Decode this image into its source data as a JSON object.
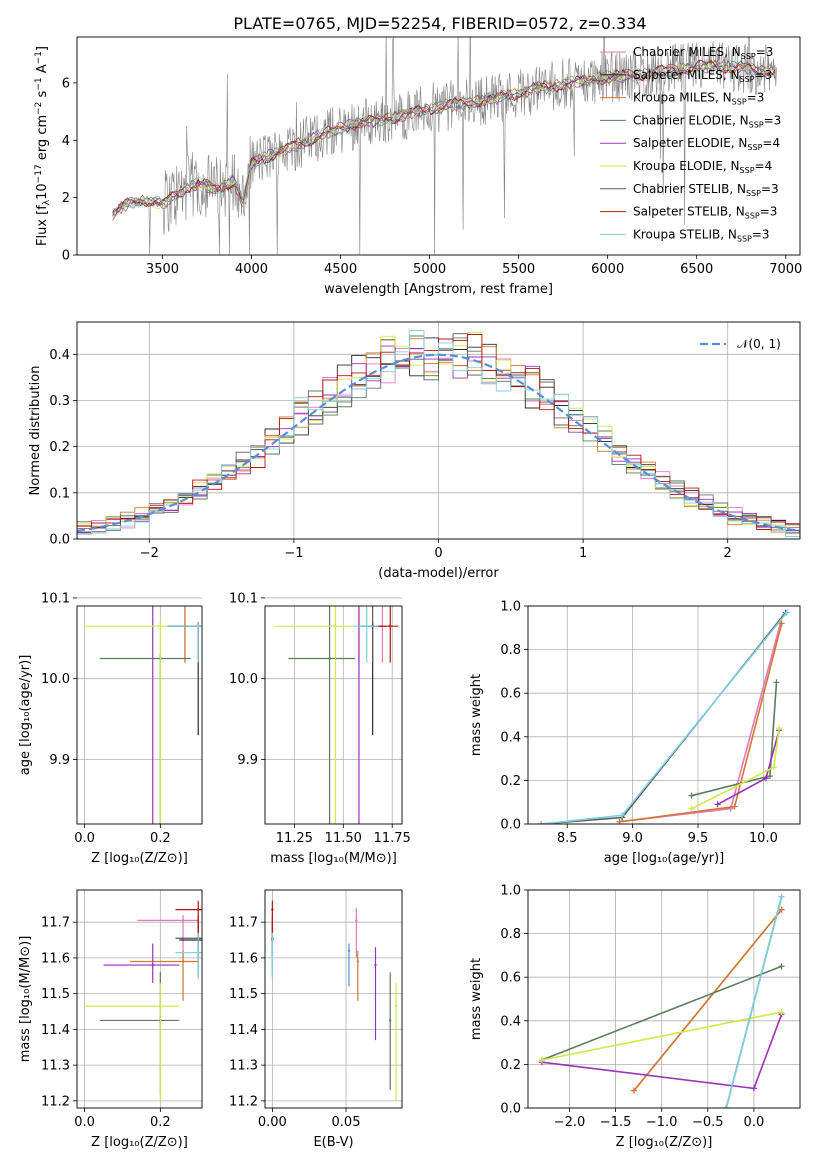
{
  "figure": {
    "title": "PLATE=0765, MJD=52254, FIBERID=0572, z=0.334"
  },
  "colors": {
    "Chabrier MILES": "#e377c2",
    "Salpeter MILES": "#2a2a2a",
    "Kroupa MILES": "#d2772f",
    "Chabrier ELODIE": "#5a7d5a",
    "Salpeter ELODIE": "#9a32b8",
    "Kroupa ELODIE": "#cfe84a",
    "Chabrier STELIB": "#5a5a5a",
    "Salpeter STELIB": "#b81414",
    "Kroupa STELIB": "#7fd0e0",
    "observed": "#808080",
    "normal": "#5b8ed6",
    "extra_blue": "#5b8ed6"
  },
  "legend": {
    "labels": [
      "Chabrier MILES, N",
      "Salpeter MILES, N",
      "Kroupa MILES, N",
      "Chabrier ELODIE, N",
      "Salpeter ELODIE, N",
      "Kroupa ELODIE, N",
      "Chabrier STELIB, N",
      "Salpeter STELIB, N",
      "Kroupa STELIB, N"
    ],
    "subscript": "SSP",
    "nssp": [
      "=3",
      "=3",
      "=3",
      "=3",
      "=4",
      "=4",
      "=3",
      "=3",
      "=3"
    ],
    "normal_label": "𝒩(0, 1)"
  },
  "chart_data": [
    {
      "id": "spectrum",
      "type": "line",
      "xlabel": "wavelength [Angstrom, rest frame]",
      "ylabel": "Flux [f",
      "ylabel_parts": [
        "λ",
        "10",
        "−17",
        " erg cm",
        "−2",
        " s",
        "−1",
        " A",
        "−1",
        "]"
      ],
      "xlim": [
        3020,
        7080
      ],
      "ylim": [
        0,
        7.6
      ],
      "xticks": [
        3500,
        4000,
        4500,
        5000,
        5500,
        6000,
        6500,
        7000
      ],
      "yticks": [
        0,
        2,
        4,
        6
      ],
      "continuum": [
        [
          3220,
          1.4
        ],
        [
          3300,
          1.8
        ],
        [
          3400,
          1.9
        ],
        [
          3500,
          1.8
        ],
        [
          3600,
          2.2
        ],
        [
          3700,
          2.5
        ],
        [
          3800,
          2.3
        ],
        [
          3900,
          2.6
        ],
        [
          3950,
          1.8
        ],
        [
          4000,
          3.2
        ],
        [
          4200,
          3.7
        ],
        [
          4400,
          4.2
        ],
        [
          4600,
          4.6
        ],
        [
          4800,
          4.8
        ],
        [
          5000,
          5.1
        ],
        [
          5200,
          5.3
        ],
        [
          5400,
          5.5
        ],
        [
          5600,
          5.8
        ],
        [
          5800,
          6.0
        ],
        [
          6000,
          6.2
        ],
        [
          6200,
          6.3
        ],
        [
          6400,
          6.5
        ],
        [
          6600,
          6.6
        ],
        [
          6800,
          6.5
        ],
        [
          6950,
          6.4
        ]
      ]
    },
    {
      "id": "residual_histogram",
      "type": "area",
      "xlabel": "(data-model)/error",
      "ylabel": "Normed distribution",
      "xlim": [
        -2.5,
        2.5
      ],
      "ylim": [
        0,
        0.47
      ],
      "xticks": [
        -2,
        -1,
        0,
        1,
        2
      ],
      "yticks": [
        0.0,
        0.1,
        0.2,
        0.3,
        0.4
      ],
      "normal": {
        "mean": 0,
        "sigma": 1
      }
    },
    {
      "id": "age_vs_Z",
      "type": "scatter",
      "xlabel": "Z [log₁₀(Z/Z⊙)]",
      "ylabel": "age  [log₁₀(age/yr)]",
      "xlim": [
        -0.02,
        0.31
      ],
      "ylim": [
        9.82,
        10.09
      ],
      "xticks": [
        0.0,
        0.2
      ],
      "yticks": [
        9.9,
        10.0,
        10.1
      ],
      "points": [
        {
          "model": "Chabrier MILES",
          "x": 0.265,
          "y": 10.125,
          "xerr": [
            0.16,
            0.3
          ],
          "yerr": [
            10.02,
            10.125
          ]
        },
        {
          "model": "Salpeter MILES",
          "x": 0.3,
          "y": 10.065,
          "xerr": [
            0.3,
            0.3
          ],
          "yerr": [
            9.93,
            10.065
          ]
        },
        {
          "model": "Kroupa MILES",
          "x": 0.265,
          "y": 10.125,
          "xerr": [
            0.13,
            0.29
          ],
          "yerr": [
            10.02,
            10.13
          ]
        },
        {
          "model": "Chabrier ELODIE",
          "x": 0.2,
          "y": 10.025,
          "xerr": [
            0.04,
            0.28
          ],
          "yerr": [
            9.82,
            10.03
          ]
        },
        {
          "model": "Salpeter ELODIE",
          "x": 0.18,
          "y": 10.125,
          "xerr": [
            0.14,
            0.27
          ],
          "yerr": [
            9.82,
            10.13
          ]
        },
        {
          "model": "Kroupa ELODIE",
          "x": 0.2,
          "y": 10.065,
          "xerr": [
            0.0,
            0.28
          ],
          "yerr": [
            9.82,
            10.07
          ]
        },
        {
          "model": "Chabrier STELIB",
          "x": 0.3,
          "y": 10.065,
          "xerr": [
            0.22,
            0.31
          ],
          "yerr": [
            10.02,
            10.07
          ]
        },
        {
          "model": "Salpeter STELIB",
          "x": 0.3,
          "y": 10.065,
          "xerr": [
            0.22,
            0.31
          ],
          "yerr": [
            10.02,
            10.07
          ]
        },
        {
          "model": "Kroupa STELIB",
          "x": 0.3,
          "y": 10.065,
          "xerr": [
            0.22,
            0.31
          ],
          "yerr": [
            10.02,
            10.07
          ]
        }
      ]
    },
    {
      "id": "age_vs_mass",
      "type": "scatter",
      "xlabel": "mass [log₁₀(M/M⊙)]",
      "ylabel": "",
      "xlim": [
        11.1,
        11.8
      ],
      "ylim": [
        9.82,
        10.09
      ],
      "xticks": [
        11.25,
        11.5,
        11.75
      ],
      "yticks": [
        9.9,
        10.0,
        10.1
      ],
      "points": [
        {
          "model": "Chabrier MILES",
          "x": 11.7,
          "y": 10.125,
          "xerr": [
            11.63,
            11.76
          ],
          "yerr": [
            10.02,
            10.13
          ]
        },
        {
          "model": "Salpeter MILES",
          "x": 11.65,
          "y": 10.065,
          "xerr": [
            11.6,
            11.7
          ],
          "yerr": [
            9.93,
            10.07
          ]
        },
        {
          "model": "Kroupa MILES",
          "x": 11.58,
          "y": 10.125,
          "xerr": [
            11.5,
            11.7
          ],
          "yerr": [
            10.02,
            10.13
          ]
        },
        {
          "model": "Chabrier ELODIE",
          "x": 11.43,
          "y": 10.025,
          "xerr": [
            11.22,
            11.56
          ],
          "yerr": [
            9.82,
            10.13
          ]
        },
        {
          "model": "Salpeter ELODIE",
          "x": 11.58,
          "y": 10.125,
          "xerr": [
            11.55,
            11.65
          ],
          "yerr": [
            9.82,
            10.13
          ]
        },
        {
          "model": "Kroupa ELODIE",
          "x": 11.46,
          "y": 10.065,
          "xerr": [
            11.15,
            11.55
          ],
          "yerr": [
            9.82,
            10.13
          ]
        },
        {
          "model": "Chabrier STELIB",
          "x": 11.65,
          "y": 10.065,
          "xerr": [
            11.58,
            11.72
          ],
          "yerr": [
            10.02,
            10.13
          ]
        },
        {
          "model": "Salpeter STELIB",
          "x": 11.74,
          "y": 10.065,
          "xerr": [
            11.66,
            11.78
          ],
          "yerr": [
            10.02,
            10.13
          ]
        },
        {
          "model": "Kroupa STELIB",
          "x": 11.62,
          "y": 10.065,
          "xerr": [
            11.55,
            11.68
          ],
          "yerr": [
            10.02,
            10.13
          ]
        }
      ]
    },
    {
      "id": "weight_vs_age",
      "type": "line",
      "xlabel": "age  [log₁₀(age/yr)]",
      "ylabel": "mass weight",
      "xlim": [
        8.2,
        10.28
      ],
      "ylim": [
        0,
        1.0
      ],
      "xticks": [
        8.5,
        9.0,
        9.5,
        10.0
      ],
      "yticks": [
        0.0,
        0.2,
        0.4,
        0.6,
        0.8,
        1.0
      ],
      "series": [
        {
          "model": "Chabrier MILES",
          "x": [
            8.9,
            9.75,
            10.13
          ],
          "y": [
            0.01,
            0.07,
            0.92
          ]
        },
        {
          "model": "Kroupa MILES",
          "x": [
            8.9,
            9.78,
            10.14
          ],
          "y": [
            0.01,
            0.08,
            0.92
          ]
        },
        {
          "model": "Chabrier ELODIE",
          "x": [
            9.45,
            10.05,
            10.1
          ],
          "y": [
            0.13,
            0.22,
            0.65
          ]
        },
        {
          "model": "Salpeter ELODIE",
          "x": [
            9.65,
            10.02,
            10.12
          ],
          "y": [
            0.09,
            0.21,
            0.43
          ]
        },
        {
          "model": "Kroupa ELODIE",
          "x": [
            9.45,
            10.08,
            10.12
          ],
          "y": [
            0.07,
            0.26,
            0.44
          ]
        },
        {
          "model": "Chabrier STELIB",
          "x": [
            8.3,
            8.92,
            10.17
          ],
          "y": [
            0.0,
            0.03,
            0.97
          ]
        },
        {
          "model": "Kroupa STELIB",
          "x": [
            8.3,
            8.92,
            10.18
          ],
          "y": [
            0.0,
            0.04,
            0.97
          ]
        }
      ]
    },
    {
      "id": "mass_vs_Z",
      "type": "scatter",
      "xlabel": "Z [log₁₀(Z/Z⊙)]",
      "ylabel": "mass [log₁₀(M/M⊙)]",
      "xlim": [
        -0.02,
        0.31
      ],
      "ylim": [
        11.18,
        11.79
      ],
      "xticks": [
        0.0,
        0.2
      ],
      "yticks": [
        11.2,
        11.3,
        11.4,
        11.5,
        11.6,
        11.7
      ],
      "points": [
        {
          "model": "Chabrier MILES",
          "x": 0.26,
          "y": 11.705,
          "xerr": [
            0.14,
            0.3
          ],
          "yerr": [
            11.6,
            11.72
          ]
        },
        {
          "model": "Salpeter MILES",
          "x": 0.3,
          "y": 11.65,
          "xerr": [
            0.25,
            0.31
          ],
          "yerr": [
            11.6,
            11.72
          ]
        },
        {
          "model": "Kroupa MILES",
          "x": 0.26,
          "y": 11.59,
          "xerr": [
            0.12,
            0.3
          ],
          "yerr": [
            11.48,
            11.62
          ]
        },
        {
          "model": "Chabrier ELODIE",
          "x": 0.2,
          "y": 11.425,
          "xerr": [
            0.04,
            0.25
          ],
          "yerr": [
            11.22,
            11.56
          ]
        },
        {
          "model": "Salpeter ELODIE",
          "x": 0.18,
          "y": 11.58,
          "xerr": [
            0.05,
            0.25
          ],
          "yerr": [
            11.53,
            11.64
          ]
        },
        {
          "model": "Kroupa ELODIE",
          "x": 0.2,
          "y": 11.465,
          "xerr": [
            0.0,
            0.25
          ],
          "yerr": [
            11.2,
            11.53
          ]
        },
        {
          "model": "Chabrier STELIB",
          "x": 0.3,
          "y": 11.655,
          "xerr": [
            0.24,
            0.31
          ],
          "yerr": [
            11.55,
            11.7
          ]
        },
        {
          "model": "Salpeter STELIB",
          "x": 0.3,
          "y": 11.735,
          "xerr": [
            0.24,
            0.31
          ],
          "yerr": [
            11.67,
            11.76
          ]
        },
        {
          "model": "Kroupa STELIB",
          "x": 0.3,
          "y": 11.615,
          "xerr": [
            0.24,
            0.31
          ],
          "yerr": [
            11.54,
            11.67
          ]
        }
      ]
    },
    {
      "id": "mass_vs_EBV",
      "type": "scatter",
      "xlabel": "E(B-V)",
      "ylabel": "",
      "xlim": [
        -0.005,
        0.088
      ],
      "ylim": [
        11.18,
        11.79
      ],
      "xticks": [
        0.0,
        0.05
      ],
      "yticks": [
        11.2,
        11.3,
        11.4,
        11.5,
        11.6,
        11.7
      ],
      "points": [
        {
          "model": "Chabrier MILES",
          "x": 0.057,
          "y": 11.705,
          "yerr": [
            11.6,
            11.74
          ]
        },
        {
          "model": "Salpeter MILES",
          "x": 0.0,
          "y": 11.65,
          "yerr": [
            11.6,
            11.72
          ]
        },
        {
          "model": "Kroupa MILES",
          "x": 0.058,
          "y": 11.59,
          "yerr": [
            11.48,
            11.62
          ]
        },
        {
          "model": "Chabrier ELODIE",
          "x": 0.08,
          "y": 11.425,
          "yerr": [
            11.23,
            11.56
          ]
        },
        {
          "model": "Salpeter ELODIE",
          "x": 0.07,
          "y": 11.58,
          "yerr": [
            11.37,
            11.63
          ]
        },
        {
          "model": "Kroupa ELODIE",
          "x": 0.084,
          "y": 11.465,
          "yerr": [
            11.2,
            11.53
          ]
        },
        {
          "model": "Chabrier STELIB",
          "x": 0.0,
          "y": 11.655,
          "yerr": [
            11.55,
            11.7
          ]
        },
        {
          "model": "Salpeter STELIB",
          "x": 0.0,
          "y": 11.735,
          "yerr": [
            11.67,
            11.76
          ]
        },
        {
          "model": "Kroupa STELIB",
          "x": 0.0,
          "y": 11.615,
          "yerr": [
            11.54,
            11.67
          ]
        },
        {
          "model": "extra_blue",
          "x": 0.052,
          "y": 11.62,
          "yerr": [
            11.52,
            11.64
          ]
        }
      ]
    },
    {
      "id": "weight_vs_Z",
      "type": "line",
      "xlabel": "Z [log₁₀(Z/Z⊙)]",
      "ylabel": "mass weight",
      "xlim": [
        -2.45,
        0.5
      ],
      "ylim": [
        0,
        1.0
      ],
      "xticks": [
        -2.0,
        -1.5,
        -1.0,
        -0.5,
        0.0
      ],
      "yticks": [
        0.0,
        0.2,
        0.4,
        0.6,
        0.8,
        1.0
      ],
      "series": [
        {
          "model": "Chabrier MILES",
          "x": [
            -1.3,
            0.3
          ],
          "y": [
            0.08,
            0.91
          ]
        },
        {
          "model": "Kroupa MILES",
          "x": [
            -1.3,
            0.3
          ],
          "y": [
            0.08,
            0.91
          ]
        },
        {
          "model": "Chabrier ELODIE",
          "x": [
            -2.3,
            0.3
          ],
          "y": [
            0.22,
            0.65
          ]
        },
        {
          "model": "Salpeter ELODIE",
          "x": [
            -2.3,
            0.0,
            0.3
          ],
          "y": [
            0.21,
            0.09,
            0.43
          ]
        },
        {
          "model": "Kroupa ELODIE",
          "x": [
            -2.3,
            0.3
          ],
          "y": [
            0.22,
            0.44
          ]
        },
        {
          "model": "Chabrier STELIB",
          "x": [
            -0.3,
            0.3
          ],
          "y": [
            0.0,
            0.97
          ]
        },
        {
          "model": "Kroupa STELIB",
          "x": [
            -0.3,
            0.3
          ],
          "y": [
            0.0,
            0.97
          ]
        }
      ]
    }
  ]
}
